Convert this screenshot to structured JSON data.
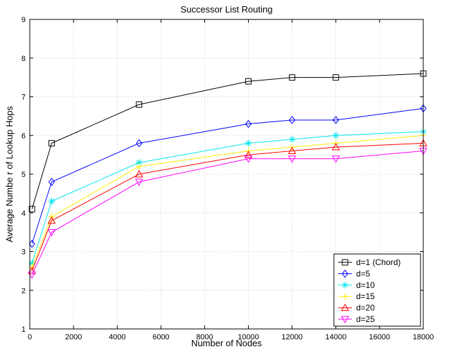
{
  "chart_data": {
    "type": "line",
    "title": "Successor List Routing",
    "xlabel": "Number of Nodes",
    "ylabel": "Average Numbe r of Lookup Hops",
    "xlim": [
      0,
      18000
    ],
    "ylim": [
      1,
      9
    ],
    "xticks": [
      0,
      2000,
      4000,
      6000,
      8000,
      10000,
      12000,
      14000,
      16000,
      18000
    ],
    "yticks": [
      1,
      2,
      3,
      4,
      5,
      6,
      7,
      8,
      9
    ],
    "grid": true,
    "legend_position": "bottom-right",
    "x": [
      100,
      1000,
      5000,
      10000,
      12000,
      14000,
      18000
    ],
    "series": [
      {
        "name": "d=1 (Chord)",
        "color": "#000000",
        "marker": "square",
        "values": [
          4.1,
          5.8,
          6.8,
          7.4,
          7.5,
          7.5,
          7.6
        ]
      },
      {
        "name": "d=5",
        "color": "#0000ff",
        "marker": "diamond",
        "values": [
          3.2,
          4.8,
          5.8,
          6.3,
          6.4,
          6.4,
          6.7
        ]
      },
      {
        "name": "d=10",
        "color": "#00e5ee",
        "marker": "asterisk",
        "values": [
          2.7,
          4.3,
          5.3,
          5.8,
          5.9,
          6.0,
          6.1
        ]
      },
      {
        "name": "d=15",
        "color": "#ffee00",
        "marker": "plus",
        "values": [
          2.6,
          3.9,
          5.2,
          5.6,
          5.7,
          5.8,
          6.0
        ]
      },
      {
        "name": "d=20",
        "color": "#ff0000",
        "marker": "triangle-up",
        "values": [
          2.5,
          3.8,
          5.0,
          5.5,
          5.6,
          5.7,
          5.8
        ]
      },
      {
        "name": "d=25",
        "color": "#ff00ff",
        "marker": "triangle-down",
        "values": [
          2.4,
          3.5,
          4.8,
          5.4,
          5.4,
          5.4,
          5.6
        ]
      }
    ]
  }
}
